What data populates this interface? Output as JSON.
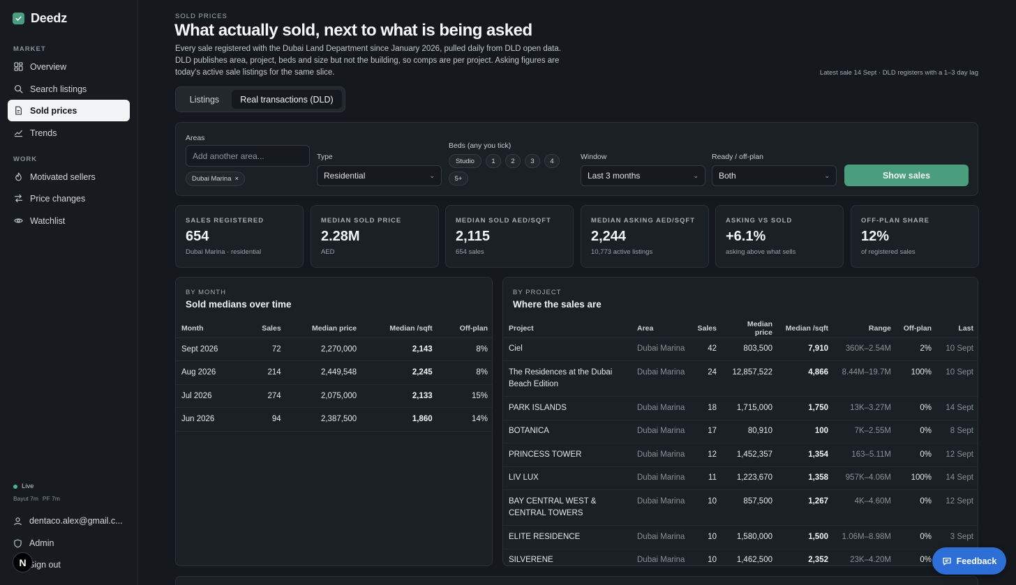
{
  "brand": {
    "name": "Deedz"
  },
  "sidebar": {
    "section_market": "MARKET",
    "section_work": "WORK",
    "market_items": [
      {
        "label": "Overview",
        "icon": "grid-icon"
      },
      {
        "label": "Search listings",
        "icon": "search-icon"
      },
      {
        "label": "Sold prices",
        "icon": "document-icon",
        "active": true
      },
      {
        "label": "Trends",
        "icon": "trend-icon"
      }
    ],
    "work_items": [
      {
        "label": "Motivated sellers",
        "icon": "flame-icon"
      },
      {
        "label": "Price changes",
        "icon": "swap-icon"
      },
      {
        "label": "Watchlist",
        "icon": "eye-icon"
      }
    ],
    "status": {
      "label": "Live",
      "sources": [
        "Bayut 7m",
        "PF 7m"
      ]
    },
    "user_email": "dentaco.alex@gmail.c...",
    "admin_label": "Admin",
    "signout_label": "Sign out",
    "badge": "N"
  },
  "header": {
    "eyebrow": "SOLD PRICES",
    "title": "What actually sold, next to what is being asked",
    "description": "Every sale registered with the Dubai Land Department since January 2026, pulled daily from DLD open data. DLD publishes area, project, beds and size but not the building, so comps are per project. Asking figures are today's active sale listings for the same slice.",
    "lag_note": "Latest sale 14 Sept · DLD registers with a 1–3 day lag"
  },
  "tabs": [
    {
      "label": "Listings",
      "active": false
    },
    {
      "label": "Real transactions (DLD)",
      "active": true
    }
  ],
  "filters": {
    "areas_label": "Areas",
    "areas_placeholder": "Add another area...",
    "selected_area": "Dubai Marina",
    "type_label": "Type",
    "type_value": "Residential",
    "beds_label": "Beds (any you tick)",
    "beds": [
      "Studio",
      "1",
      "2",
      "3",
      "4",
      "5+"
    ],
    "window_label": "Window",
    "window_value": "Last 3 months",
    "ready_label": "Ready / off-plan",
    "ready_value": "Both",
    "submit_label": "Show sales"
  },
  "stats": [
    {
      "label": "SALES REGISTERED",
      "value": "654",
      "sub": "Dubai Marina · residential"
    },
    {
      "label": "MEDIAN SOLD PRICE",
      "value": "2.28M",
      "sub": "AED"
    },
    {
      "label": "MEDIAN SOLD AED/SQFT",
      "value": "2,115",
      "sub": "654 sales"
    },
    {
      "label": "MEDIAN ASKING AED/SQFT",
      "value": "2,244",
      "sub": "10,773 active listings"
    },
    {
      "label": "ASKING VS SOLD",
      "value": "+6.1%",
      "sub": "asking above what sells"
    },
    {
      "label": "OFF-PLAN SHARE",
      "value": "12%",
      "sub": "of registered sales"
    }
  ],
  "by_month": {
    "eyebrow": "BY MONTH",
    "title": "Sold medians over time",
    "headers": [
      "Month",
      "Sales",
      "Median price",
      "Median /sqft",
      "Off-plan"
    ],
    "rows": [
      [
        "Sept 2026",
        "72",
        "2,270,000",
        "2,143",
        "8%"
      ],
      [
        "Aug 2026",
        "214",
        "2,449,548",
        "2,245",
        "8%"
      ],
      [
        "Jul 2026",
        "274",
        "2,075,000",
        "2,133",
        "15%"
      ],
      [
        "Jun 2026",
        "94",
        "2,387,500",
        "1,860",
        "14%"
      ]
    ]
  },
  "by_project": {
    "eyebrow": "BY PROJECT",
    "title": "Where the sales are",
    "headers": [
      "Project",
      "Area",
      "Sales",
      "Median price",
      "Median /sqft",
      "Range",
      "Off-plan",
      "Last"
    ],
    "rows": [
      [
        "Ciel",
        "Dubai Marina",
        "42",
        "803,500",
        "7,910",
        "360K–2.54M",
        "2%",
        "10 Sept"
      ],
      [
        "The Residences at the Dubai Beach Edition",
        "Dubai Marina",
        "24",
        "12,857,522",
        "4,866",
        "8.44M–19.7M",
        "100%",
        "10 Sept"
      ],
      [
        "PARK ISLANDS",
        "Dubai Marina",
        "18",
        "1,715,000",
        "1,750",
        "13K–3.27M",
        "0%",
        "14 Sept"
      ],
      [
        "BOTANICA",
        "Dubai Marina",
        "17",
        "80,910",
        "100",
        "7K–2.55M",
        "0%",
        "8 Sept"
      ],
      [
        "PRINCESS TOWER",
        "Dubai Marina",
        "12",
        "1,452,357",
        "1,354",
        "163–5.11M",
        "0%",
        "12 Sept"
      ],
      [
        "LIV LUX",
        "Dubai Marina",
        "11",
        "1,223,670",
        "1,358",
        "957K–4.06M",
        "100%",
        "14 Sept"
      ],
      [
        "BAY CENTRAL WEST & CENTRAL TOWERS",
        "Dubai Marina",
        "10",
        "857,500",
        "1,267",
        "4K–4.60M",
        "0%",
        "12 Sept"
      ],
      [
        "ELITE RESIDENCE",
        "Dubai Marina",
        "10",
        "1,580,000",
        "1,500",
        "1.06M–8.98M",
        "0%",
        "3 Sept"
      ],
      [
        "SILVERENE",
        "Dubai Marina",
        "10",
        "1,462,500",
        "2,352",
        "23K–4.20M",
        "0%",
        ""
      ]
    ]
  },
  "feedback_label": "Feedback"
}
